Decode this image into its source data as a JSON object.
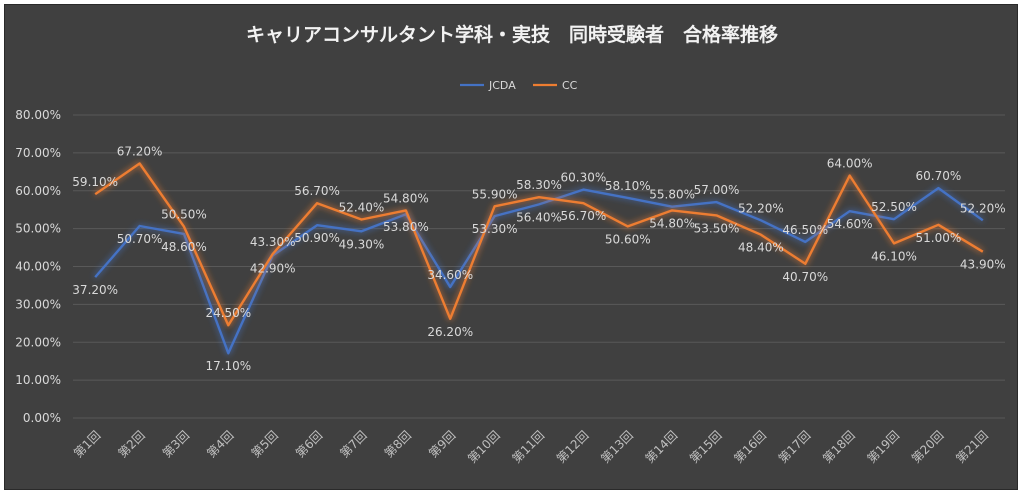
{
  "chart_data": {
    "type": "line",
    "title": "キャリアコンサルタント学科・実技　同時受験者　合格率推移",
    "categories": [
      "第1回",
      "第2回",
      "第3回",
      "第4回",
      "第5回",
      "第6回",
      "第7回",
      "第8回",
      "第9回",
      "第10回",
      "第11回",
      "第12回",
      "第13回",
      "第14回",
      "第15回",
      "第16回",
      "第17回",
      "第18回",
      "第19回",
      "第20回",
      "第21回"
    ],
    "series": [
      {
        "name": "JCDA",
        "color": "#4472c4",
        "values": [
          37.2,
          50.7,
          48.6,
          17.1,
          42.9,
          50.9,
          49.3,
          53.8,
          34.6,
          53.3,
          56.4,
          60.3,
          58.1,
          55.8,
          57.0,
          52.2,
          46.5,
          54.6,
          52.5,
          60.7,
          52.2
        ],
        "labels": [
          "37.20%",
          "50.70%",
          "48.60%",
          "17.10%",
          "42.90%",
          "50.90%",
          "49.30%",
          "53.80%",
          "34.60%",
          "53.30%",
          "56.40%",
          "60.30%",
          "58.10%",
          "55.80%",
          "57.00%",
          "52.20%",
          "46.50%",
          "54.60%",
          "52.50%",
          "60.70%",
          "52.20%"
        ]
      },
      {
        "name": "CC",
        "color": "#ed7d31",
        "values": [
          59.1,
          67.2,
          50.5,
          24.5,
          43.3,
          56.7,
          52.4,
          54.8,
          26.2,
          55.9,
          58.3,
          56.7,
          50.6,
          54.8,
          53.5,
          48.4,
          40.7,
          64.0,
          46.1,
          51.0,
          43.9
        ],
        "labels": [
          "59.10%",
          "67.20%",
          "50.50%",
          "24.50%",
          "43.30%",
          "56.70%",
          "52.40%",
          "54.80%",
          "26.20%",
          "55.90%",
          "58.30%",
          "56.70%",
          "50.60%",
          "54.80%",
          "53.50%",
          "48.40%",
          "40.70%",
          "64.00%",
          "46.10%",
          "51.00%",
          "43.90%"
        ]
      }
    ],
    "yticks": [
      "0.00%",
      "10.00%",
      "20.00%",
      "30.00%",
      "40.00%",
      "50.00%",
      "60.00%",
      "70.00%",
      "80.00%"
    ],
    "ylim": [
      0,
      80
    ],
    "grid": true,
    "legend_position": "top"
  }
}
